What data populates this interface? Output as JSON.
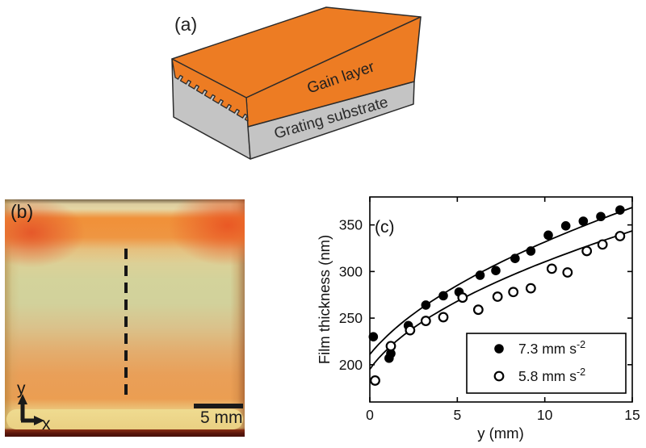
{
  "figure": {
    "background": "#ffffff",
    "panel_a": {
      "label": "(a)",
      "gain_layer_label": "Gain layer",
      "substrate_label": "Grating substrate",
      "colors": {
        "gain_layer": "#ed7c23",
        "substrate": "#c4c4c4",
        "outline": "#2b2b2b",
        "text": "#1f1f1f"
      }
    },
    "panel_b": {
      "label": "(b)",
      "axis_y_label": "y",
      "axis_x_label": "x",
      "scale_bar_label": "5 mm",
      "colors": {
        "top_band": "#f08e3c",
        "corner_blob": "#e65427",
        "center": "#d3d39b",
        "lower_orange": "#ea9c54",
        "bottom_band": "#eed98d",
        "bottom_edge": "#5a150e",
        "dashed_line": "#161616",
        "annotation": "#141414"
      }
    },
    "panel_c": {
      "label": "(c)"
    }
  },
  "chart_data": {
    "type": "scatter",
    "title": "",
    "xlabel": "y (mm)",
    "ylabel": "Film thickness (nm)",
    "xlim": [
      0,
      15
    ],
    "ylim": [
      160,
      380
    ],
    "xticks": [
      0,
      5,
      10,
      15
    ],
    "yticks": [
      200,
      250,
      300,
      350
    ],
    "grid": false,
    "legend_position": "lower right",
    "marker_color": "#000000",
    "curve_color": "#000000",
    "series": [
      {
        "name": "7.3 mm s-2",
        "label_main": "7.3 mm s",
        "label_exp": "-2",
        "marker": "filled-circle",
        "x": [
          0.2,
          1.1,
          1.2,
          2.2,
          3.2,
          4.2,
          5.1,
          6.3,
          7.2,
          8.3,
          9.2,
          10.2,
          11.2,
          12.2,
          13.2,
          14.3
        ],
        "y": [
          230,
          207,
          212,
          242,
          264,
          274,
          278,
          296,
          301,
          314,
          322,
          339,
          349,
          354,
          359,
          366
        ],
        "fit": {
          "type": "sqrt",
          "a": 146,
          "b": 55,
          "c": 1.4
        }
      },
      {
        "name": "5.8 mm s-2",
        "label_main": "5.8 mm s",
        "label_exp": "-2",
        "marker": "open-circle",
        "x": [
          0.3,
          1.2,
          2.3,
          3.2,
          4.2,
          5.3,
          6.2,
          7.3,
          8.2,
          9.2,
          10.4,
          11.3,
          12.4,
          13.3,
          14.3
        ],
        "y": [
          183,
          220,
          237,
          247,
          251,
          272,
          259,
          273,
          278,
          282,
          303,
          299,
          322,
          329,
          338
        ],
        "fit": {
          "type": "sqrt",
          "a": 152,
          "b": 48.2,
          "c": 0.8
        }
      }
    ]
  }
}
